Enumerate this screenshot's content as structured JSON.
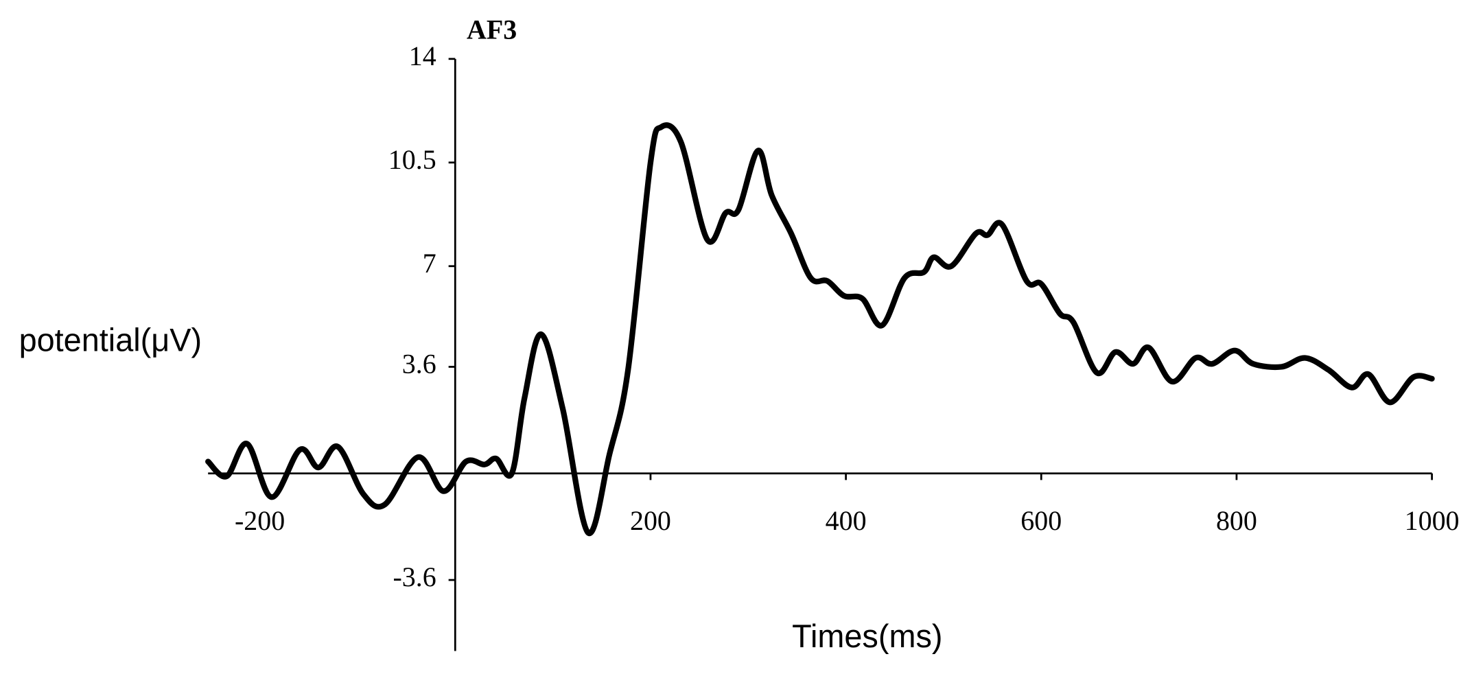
{
  "chart_data": {
    "type": "line",
    "title": "AF3",
    "ylabel": "potential(μV)",
    "xlabel": "Times(ms)",
    "xlim": [
      -253,
      1000
    ],
    "ylim": [
      -6,
      14
    ],
    "xticks": [
      -200,
      200,
      400,
      600,
      800,
      1000
    ],
    "yticks": [
      -3.6,
      3.6,
      7,
      10.5,
      14
    ],
    "series": [
      {
        "name": "AF3",
        "color": "#000000",
        "x": [
          -253,
          -234,
          -213,
          -188,
          -159,
          -140,
          -120,
          -94,
          -72,
          -38,
          -12,
          11,
          30,
          42,
          58,
          71,
          88,
          110,
          136,
          158,
          177,
          200,
          211,
          231,
          258,
          277,
          290,
          310,
          324,
          344,
          364,
          381,
          398,
          417,
          437,
          460,
          480,
          490,
          508,
          533,
          545,
          560,
          585,
          600,
          619,
          633,
          657,
          676,
          694,
          710,
          734,
          758,
          775,
          798,
          817,
          846,
          870,
          894,
          918,
          935,
          957,
          981,
          1000
        ],
        "values": [
          0.4,
          -0.1,
          1.0,
          -0.8,
          0.8,
          0.2,
          0.9,
          -0.7,
          -1.05,
          0.55,
          -0.6,
          0.4,
          0.3,
          0.5,
          0,
          2.55,
          4.7,
          2.2,
          -2.0,
          0.65,
          3.5,
          10.5,
          11.7,
          11.2,
          7.9,
          8.8,
          8.9,
          10.9,
          9.4,
          8.1,
          6.6,
          6.5,
          6.0,
          5.9,
          5.0,
          6.6,
          6.8,
          7.3,
          7.0,
          8.1,
          8.05,
          8.4,
          6.5,
          6.4,
          5.4,
          5.1,
          3.4,
          4.1,
          3.7,
          4.25,
          3.1,
          3.9,
          3.7,
          4.15,
          3.7,
          3.6,
          3.9,
          3.5,
          2.9,
          3.35,
          2.4,
          3.25,
          3.2
        ]
      }
    ]
  }
}
